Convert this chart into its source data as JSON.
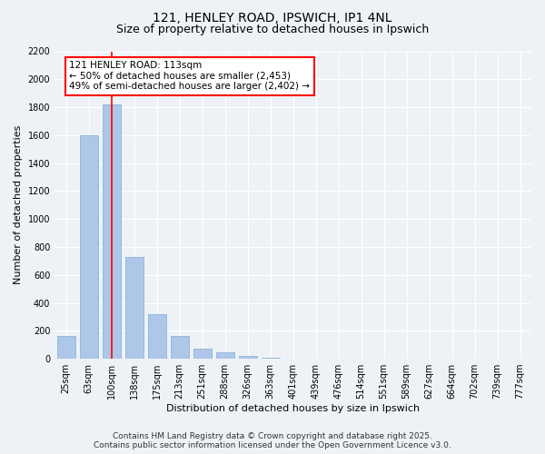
{
  "title": "121, HENLEY ROAD, IPSWICH, IP1 4NL",
  "subtitle": "Size of property relative to detached houses in Ipswich",
  "xlabel": "Distribution of detached houses by size in Ipswich",
  "ylabel": "Number of detached properties",
  "categories": [
    "25sqm",
    "63sqm",
    "100sqm",
    "138sqm",
    "175sqm",
    "213sqm",
    "251sqm",
    "288sqm",
    "326sqm",
    "363sqm",
    "401sqm",
    "439sqm",
    "476sqm",
    "514sqm",
    "551sqm",
    "589sqm",
    "627sqm",
    "664sqm",
    "702sqm",
    "739sqm",
    "777sqm"
  ],
  "values": [
    160,
    1600,
    1820,
    730,
    320,
    160,
    75,
    45,
    20,
    8,
    3,
    1,
    1,
    0,
    0,
    0,
    0,
    0,
    0,
    0,
    0
  ],
  "bar_color": "#aec6e8",
  "bar_edgecolor": "#7aafd4",
  "vline_x_index": 2,
  "vline_color": "red",
  "annotation_line1": "121 HENLEY ROAD: 113sqm",
  "annotation_line2": "← 50% of detached houses are smaller (2,453)",
  "annotation_line3": "49% of semi-detached houses are larger (2,402) →",
  "annotation_box_color": "white",
  "annotation_box_edgecolor": "red",
  "ylim": [
    0,
    2200
  ],
  "yticks": [
    0,
    200,
    400,
    600,
    800,
    1000,
    1200,
    1400,
    1600,
    1800,
    2000,
    2200
  ],
  "background_color": "#eef2f7",
  "grid_color": "white",
  "footer_line1": "Contains HM Land Registry data © Crown copyright and database right 2025.",
  "footer_line2": "Contains public sector information licensed under the Open Government Licence v3.0.",
  "title_fontsize": 10,
  "subtitle_fontsize": 9,
  "axis_label_fontsize": 8,
  "tick_fontsize": 7,
  "annotation_fontsize": 7.5,
  "footer_fontsize": 6.5
}
